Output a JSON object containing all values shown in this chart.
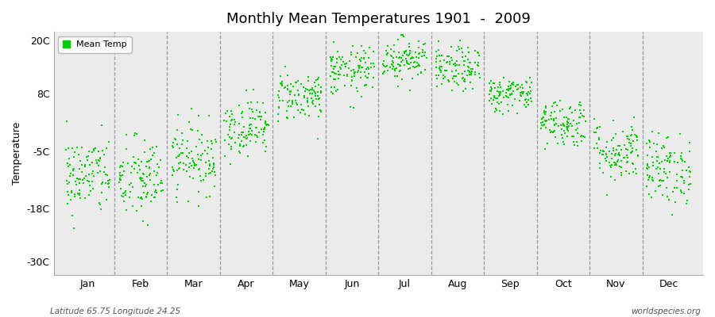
{
  "title": "Monthly Mean Temperatures 1901  -  2009",
  "ylabel": "Temperature",
  "xlabel_bottom_left": "Latitude 65.75 Longitude 24.25",
  "xlabel_bottom_right": "worldspecies.org",
  "legend_label": "Mean Temp",
  "dot_color": "#00CC00",
  "background_color": "#EBEBEB",
  "outer_background": "#FFFFFF",
  "yticks": [
    -30,
    -18,
    -5,
    8,
    20
  ],
  "ytick_labels": [
    "-30C",
    "-18C",
    "-5C",
    "8C",
    "20C"
  ],
  "ylim": [
    -33,
    22
  ],
  "months": [
    "Jan",
    "Feb",
    "Mar",
    "Apr",
    "May",
    "Jun",
    "Jul",
    "Aug",
    "Sep",
    "Oct",
    "Nov",
    "Dec"
  ],
  "monthly_mean_temps": [
    -10.5,
    -11.5,
    -6.5,
    0.5,
    7.5,
    13.0,
    16.0,
    13.5,
    8.0,
    1.5,
    -5.0,
    -9.0
  ],
  "monthly_std_temps": [
    4.5,
    4.8,
    4.0,
    3.2,
    2.8,
    2.8,
    2.5,
    2.5,
    2.0,
    2.8,
    3.5,
    4.0
  ],
  "n_years": 109,
  "seed": 42,
  "dot_size": 3,
  "figsize": [
    9.0,
    4.0
  ],
  "dpi": 100
}
